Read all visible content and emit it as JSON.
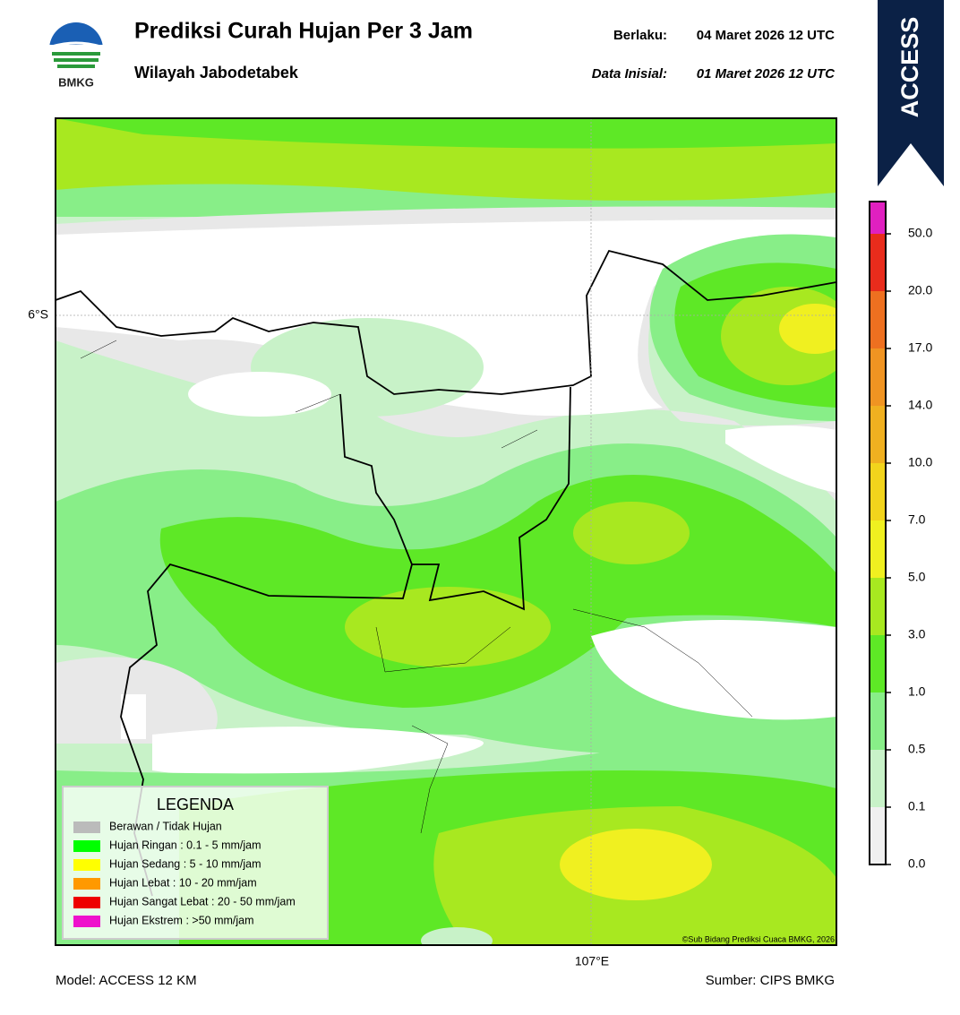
{
  "header": {
    "logo_text": "BMKG",
    "title": "Prediksi Curah Hujan Per 3 Jam",
    "subtitle": "Wilayah Jabodetabek",
    "valid_label": "Berlaku:",
    "valid_time": "04 Maret 2026 12 UTC",
    "init_label": "Data Inisial:",
    "init_time": "01 Maret 2026 12 UTC",
    "model_badge": "ACCESS"
  },
  "map": {
    "lat_label": "6°S",
    "lon_label": "107°E",
    "credit": "©Sub Bidang Prediksi Cuaca BMKG, 2026"
  },
  "legend": {
    "title": "LEGENDA",
    "items": [
      {
        "label": "Berawan / Tidak Hujan",
        "color": "#bbbbbb"
      },
      {
        "label": "Hujan Ringan : 0.1 - 5 mm/jam",
        "color": "#00ff00"
      },
      {
        "label": "Hujan Sedang : 5 - 10 mm/jam",
        "color": "#ffff00"
      },
      {
        "label": "Hujan Lebat : 10 - 20 mm/jam",
        "color": "#ff9900"
      },
      {
        "label": "Hujan Sangat Lebat : 20 - 50 mm/jam",
        "color": "#ee0000"
      },
      {
        "label": "Hujan Ekstrem : >50 mm/jam",
        "color": "#ee11cc"
      }
    ]
  },
  "colorbar": {
    "ticks": [
      {
        "value": 0,
        "label": "0.0"
      },
      {
        "value": 0.1,
        "label": "0.1"
      },
      {
        "value": 0.5,
        "label": "0.5"
      },
      {
        "value": 1,
        "label": "1.0"
      },
      {
        "value": 3,
        "label": "3.0"
      },
      {
        "value": 5,
        "label": "5.0"
      },
      {
        "value": 7,
        "label": "7.0"
      },
      {
        "value": 10,
        "label": "10.0"
      },
      {
        "value": 14,
        "label": "14.0"
      },
      {
        "value": 17,
        "label": "17.0"
      },
      {
        "value": 20,
        "label": "20.0"
      },
      {
        "value": 50,
        "label": "50.0"
      }
    ],
    "colors": [
      "#f0f0f0",
      "#c8f2c8",
      "#88ee88",
      "#5ee826",
      "#a8e820",
      "#f0f020",
      "#f2d41c",
      "#f0b020",
      "#f09422",
      "#ee7020",
      "#e82c1c",
      "#e020c0"
    ]
  },
  "footer": {
    "model": "Model: ACCESS 12 KM",
    "source": "Sumber: CIPS BMKG"
  }
}
